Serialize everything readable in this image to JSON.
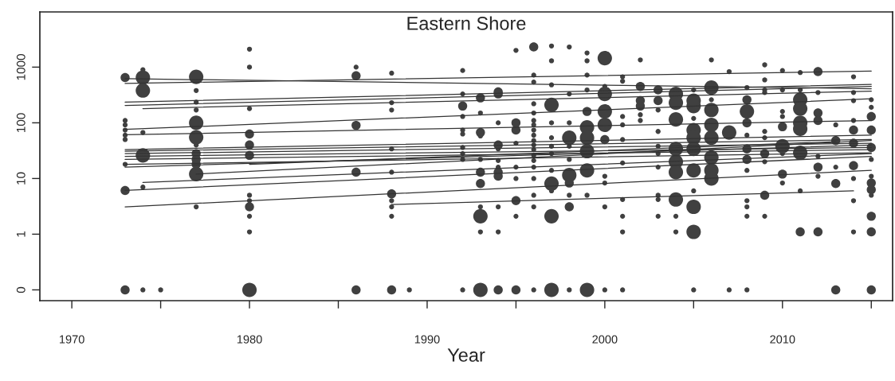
{
  "chart_data": {
    "type": "bubble",
    "title": "Eastern Shore",
    "xlabel": "Year",
    "log": "y",
    "marker": "circle",
    "grid": false,
    "xlim": [
      1968.2,
      2016.2
    ],
    "xticks": [
      1970,
      {
        "value": 1975,
        "label": null
      },
      1980,
      {
        "value": 1985,
        "label": null
      },
      1990,
      {
        "value": 1995,
        "label": null
      },
      2000,
      {
        "value": 2005,
        "label": null
      },
      2010,
      {
        "value": 2015,
        "label": null
      }
    ],
    "ylim": [
      0.064,
      9800
    ],
    "yticks": [
      {
        "value": 0.1,
        "label": "0"
      },
      1,
      10,
      100,
      1000
    ],
    "series": [
      {
        "color": "#404040",
        "x": [
          1973,
          1973,
          1973,
          1973,
          1973,
          1973,
          1973,
          1973,
          1973
        ],
        "values": [
          650,
          110,
          92,
          74,
          60,
          50,
          18,
          6.1,
          0.1
        ],
        "sizes": [
          0.4,
          0.12,
          0.12,
          0.12,
          0.12,
          0.12,
          0.12,
          0.4,
          0.4
        ]
      },
      {
        "color": "#404040",
        "x": [
          1974,
          1974,
          1974,
          1974,
          1974,
          1974,
          1974
        ],
        "values": [
          900,
          650,
          380,
          67,
          26,
          7,
          0.1
        ],
        "sizes": [
          0.12,
          1,
          1,
          0.12,
          1,
          0.12,
          0.12
        ]
      },
      {
        "color": "#404040",
        "x": [
          1975
        ],
        "values": [
          0.1
        ],
        "sizes": [
          0.12
        ]
      },
      {
        "color": "#404040",
        "x": [
          1977,
          1977,
          1977,
          1977,
          1977,
          1977,
          1977,
          1977,
          1977,
          1977,
          1977,
          1977
        ],
        "values": [
          670,
          380,
          235,
          170,
          100,
          55,
          40,
          28,
          22,
          18,
          12,
          3.1
        ],
        "sizes": [
          1,
          0.12,
          0.12,
          0.12,
          1,
          1,
          0.12,
          0.4,
          0.4,
          0.4,
          1,
          0.12
        ]
      },
      {
        "color": "#404040",
        "x": [
          1980,
          1980,
          1980,
          1980,
          1980,
          1980,
          1980,
          1980,
          1980,
          1980,
          1980,
          1980
        ],
        "values": [
          2100,
          1000,
          180,
          63,
          40,
          26,
          5,
          4,
          3.1,
          2.1,
          1.1,
          0.1
        ],
        "sizes": [
          0.12,
          0.12,
          0.12,
          0.4,
          0.4,
          0.4,
          0.12,
          0.12,
          0.4,
          0.12,
          0.12,
          1
        ]
      },
      {
        "color": "#404040",
        "x": [
          1986,
          1986,
          1986,
          1986,
          1986
        ],
        "values": [
          1000,
          700,
          90,
          13,
          0.1
        ],
        "sizes": [
          0.12,
          0.4,
          0.4,
          0.4,
          0.4
        ]
      },
      {
        "color": "#404040",
        "x": [
          1988,
          1988,
          1988,
          1988,
          1988,
          1988,
          1988,
          1988,
          1988,
          1988
        ],
        "values": [
          780,
          230,
          170,
          34,
          13,
          5.3,
          4,
          3.1,
          2.1,
          0.1
        ],
        "sizes": [
          0.12,
          0.12,
          0.12,
          0.12,
          0.12,
          0.4,
          0.12,
          0.12,
          0.12,
          0.4
        ]
      },
      {
        "color": "#404040",
        "x": [
          1989
        ],
        "values": [
          0.1
        ],
        "sizes": [
          0.12
        ]
      },
      {
        "color": "#404040",
        "x": [
          1992,
          1992,
          1992,
          1992,
          1992,
          1992,
          1992,
          1992,
          1992,
          1992
        ],
        "values": [
          870,
          330,
          200,
          130,
          74,
          63,
          36,
          28,
          22,
          0.1
        ],
        "sizes": [
          0.12,
          0.12,
          0.4,
          0.12,
          0.12,
          0.12,
          0.12,
          0.12,
          0.12,
          0.12
        ]
      },
      {
        "color": "#404040",
        "x": [
          1993,
          1993,
          1993,
          1993,
          1993,
          1993,
          1993,
          1993,
          1993,
          1993,
          1993
        ],
        "values": [
          280,
          150,
          67,
          58,
          22,
          13,
          8.1,
          3.1,
          2.1,
          1.1,
          0.1
        ],
        "sizes": [
          0.4,
          0.12,
          0.4,
          0.12,
          0.12,
          0.4,
          0.4,
          0.12,
          1,
          0.12,
          1
        ]
      },
      {
        "color": "#404040",
        "x": [
          1994,
          1994,
          1994,
          1994,
          1994,
          1994,
          1994,
          1994,
          1994,
          1994,
          1994,
          1994
        ],
        "values": [
          360,
          330,
          100,
          40,
          34,
          21,
          16,
          13,
          11,
          3.1,
          1.1,
          0.1
        ],
        "sizes": [
          0.4,
          0.4,
          0.12,
          0.4,
          0.12,
          0.12,
          0.12,
          0.4,
          0.4,
          0.12,
          0.12,
          0.4
        ]
      },
      {
        "color": "#404040",
        "x": [
          1995,
          1995,
          1995,
          1995,
          1995,
          1995,
          1995,
          1995,
          1995
        ],
        "values": [
          2000,
          100,
          74,
          43,
          16,
          10,
          4,
          2.1,
          0.1
        ],
        "sizes": [
          0.12,
          0.4,
          0.4,
          0.12,
          0.12,
          0.12,
          0.4,
          0.12,
          0.4
        ]
      },
      {
        "color": "#404040",
        "x": [
          1996,
          1996,
          1996,
          1996,
          1996,
          1996,
          1996,
          1996,
          1996,
          1996,
          1996,
          1996,
          1996,
          1996,
          1996,
          1996,
          1996,
          1996,
          1996
        ],
        "values": [
          2300,
          720,
          540,
          220,
          150,
          110,
          92,
          74,
          60,
          48,
          40,
          33,
          26,
          21,
          16,
          10,
          5,
          3.1,
          0.1
        ],
        "sizes": [
          0.4,
          0.12,
          0.12,
          0.12,
          0.12,
          0.12,
          0.12,
          0.12,
          0.12,
          0.12,
          0.12,
          0.12,
          0.12,
          0.12,
          0.12,
          0.12,
          0.12,
          0.12,
          0.12
        ]
      },
      {
        "color": "#404040",
        "x": [
          1997,
          1997,
          1997,
          1997,
          1997,
          1997,
          1997,
          1997,
          1997,
          1997,
          1997,
          1997,
          1997
        ],
        "values": [
          2400,
          1300,
          480,
          210,
          100,
          54,
          38,
          28,
          14,
          8.1,
          6,
          2.1,
          0.1
        ],
        "sizes": [
          0.12,
          0.12,
          0.12,
          1,
          0.12,
          0.12,
          0.12,
          0.12,
          0.12,
          1,
          0.12,
          1,
          1
        ]
      },
      {
        "color": "#404040",
        "x": [
          1998,
          1998,
          1998,
          1998,
          1998,
          1998,
          1998,
          1998,
          1998,
          1998,
          1998
        ],
        "values": [
          2300,
          330,
          100,
          54,
          38,
          22,
          11.5,
          8.3,
          5,
          3.1,
          0.1
        ],
        "sizes": [
          0.12,
          0.12,
          0.12,
          1,
          0.12,
          0.12,
          1,
          0.4,
          0.12,
          0.4,
          0.12
        ]
      },
      {
        "color": "#404040",
        "x": [
          1999,
          1999,
          1999,
          1999,
          1999,
          1999,
          1999,
          1999,
          1999,
          1999,
          1999
        ],
        "values": [
          1800,
          1300,
          720,
          390,
          160,
          83,
          54,
          31,
          14,
          5,
          0.1
        ],
        "sizes": [
          0.12,
          0.12,
          0.12,
          0.12,
          0.4,
          1,
          1,
          1,
          1,
          0.12,
          1
        ]
      },
      {
        "color": "#404040",
        "x": [
          2000,
          2000,
          2000,
          2000,
          2000,
          2000,
          2000,
          2000,
          2000,
          2000
        ],
        "values": [
          1450,
          450,
          330,
          160,
          92,
          50,
          11,
          8.3,
          3.1,
          0.1
        ],
        "sizes": [
          1,
          0.12,
          1,
          1,
          1,
          0.4,
          0.12,
          0.12,
          0.12,
          0.12
        ]
      },
      {
        "color": "#404040",
        "x": [
          2001,
          2001,
          2001,
          2001,
          2001,
          2001,
          2001,
          2001,
          2001,
          2001
        ],
        "values": [
          670,
          560,
          130,
          92,
          50,
          19,
          4.2,
          2.1,
          1.1,
          0.1
        ],
        "sizes": [
          0.12,
          0.12,
          0.12,
          0.12,
          0.12,
          0.12,
          0.12,
          0.12,
          0.12,
          0.12
        ]
      },
      {
        "color": "#404040",
        "x": [
          2002,
          2002,
          2002,
          2002,
          2002,
          2002
        ],
        "values": [
          1350,
          450,
          250,
          200,
          140,
          110
        ],
        "sizes": [
          0.12,
          0.4,
          0.4,
          0.4,
          0.12,
          0.12
        ]
      },
      {
        "color": "#404040",
        "x": [
          2003,
          2003,
          2003,
          2003,
          2003,
          2003,
          2003,
          2003,
          2003,
          2003
        ],
        "values": [
          390,
          250,
          170,
          70,
          38,
          28,
          16,
          5,
          4.2,
          2.1
        ],
        "sizes": [
          0.4,
          0.4,
          0.12,
          0.12,
          0.12,
          0.12,
          0.12,
          0.12,
          0.12,
          0.12
        ]
      },
      {
        "color": "#404040",
        "x": [
          2004,
          2004,
          2004,
          2004,
          2004,
          2004,
          2004,
          2004,
          2004
        ],
        "values": [
          330,
          230,
          115,
          34,
          20,
          13,
          4.2,
          2.1,
          1.1
        ],
        "sizes": [
          1,
          1,
          1,
          1,
          1,
          1,
          1,
          0.12,
          0.12
        ]
      },
      {
        "color": "#404040",
        "x": [
          2005,
          2005,
          2005,
          2005,
          2005,
          2005,
          2005,
          2005,
          2005,
          2005,
          2005,
          2005
        ],
        "values": [
          390,
          250,
          200,
          120,
          74,
          54,
          34,
          14,
          6,
          3.1,
          1.1,
          0.1
        ],
        "sizes": [
          0.12,
          1,
          1,
          0.12,
          1,
          1,
          1,
          1,
          0.12,
          1,
          1,
          0.12
        ]
      },
      {
        "color": "#404040",
        "x": [
          2006,
          2006,
          2006,
          2006,
          2006,
          2006,
          2006,
          2006,
          2006
        ],
        "values": [
          1350,
          430,
          260,
          170,
          92,
          54,
          24,
          14,
          10
        ],
        "sizes": [
          0.12,
          1,
          0.12,
          1,
          1,
          1,
          1,
          1,
          1
        ]
      },
      {
        "color": "#404040",
        "x": [
          2007,
          2007,
          2007
        ],
        "values": [
          830,
          67,
          0.1
        ],
        "sizes": [
          0.12,
          1,
          0.12
        ]
      },
      {
        "color": "#404040",
        "x": [
          2008,
          2008,
          2008,
          2008,
          2008,
          2008,
          2008,
          2008,
          2008,
          2008,
          2008,
          2008
        ],
        "values": [
          430,
          260,
          160,
          100,
          60,
          34,
          22,
          14,
          4,
          3.1,
          2.1,
          0.1
        ],
        "sizes": [
          0.12,
          0.4,
          1,
          0.4,
          0.12,
          0.4,
          0.4,
          0.12,
          0.12,
          0.12,
          0.12,
          0.12
        ]
      },
      {
        "color": "#404040",
        "x": [
          2009,
          2009,
          2009,
          2009,
          2009,
          2009,
          2009,
          2009,
          2009,
          2009
        ],
        "values": [
          1100,
          590,
          390,
          350,
          70,
          54,
          28,
          20,
          5,
          2.1
        ],
        "sizes": [
          0.12,
          0.12,
          0.12,
          0.12,
          0.12,
          0.12,
          0.4,
          0.12,
          0.4,
          0.12
        ]
      },
      {
        "color": "#404040",
        "x": [
          2010,
          2010,
          2010,
          2010,
          2010,
          2010,
          2010,
          2010,
          2010
        ],
        "values": [
          870,
          390,
          160,
          130,
          85,
          38,
          28,
          12,
          8.3
        ],
        "sizes": [
          0.12,
          0.12,
          0.12,
          0.12,
          0.4,
          1,
          0.12,
          0.4,
          0.12
        ]
      },
      {
        "color": "#404040",
        "x": [
          2011,
          2011,
          2011,
          2011,
          2011,
          2011,
          2011,
          2011,
          2011
        ],
        "values": [
          800,
          390,
          260,
          180,
          100,
          78,
          29,
          6,
          1.1
        ],
        "sizes": [
          0.12,
          0.12,
          1,
          1,
          1,
          1,
          1,
          0.12,
          0.4
        ]
      },
      {
        "color": "#404040",
        "x": [
          2012,
          2012,
          2012,
          2012,
          2012,
          2012,
          2012,
          2012
        ],
        "values": [
          830,
          350,
          150,
          110,
          25,
          16,
          11,
          1.1
        ],
        "sizes": [
          0.4,
          0.12,
          0.4,
          0.4,
          0.12,
          0.4,
          0.12,
          0.4
        ]
      },
      {
        "color": "#404040",
        "x": [
          2013,
          2013,
          2013,
          2013,
          2013
        ],
        "values": [
          92,
          48,
          16,
          8.1,
          0.1
        ],
        "sizes": [
          0.12,
          0.4,
          0.12,
          0.4,
          0.4
        ]
      },
      {
        "color": "#404040",
        "x": [
          2014,
          2014,
          2014,
          2014,
          2014,
          2014,
          2014,
          2014,
          2014,
          2014
        ],
        "values": [
          670,
          350,
          250,
          110,
          74,
          43,
          17,
          10,
          4,
          1.1
        ],
        "sizes": [
          0.12,
          0.12,
          0.12,
          0.12,
          0.4,
          0.4,
          0.4,
          0.12,
          0.12,
          0.12
        ]
      },
      {
        "color": "#404040",
        "x": [
          2015,
          2015,
          2015,
          2015,
          2015,
          2015,
          2015,
          2015,
          2015,
          2015,
          2015,
          2015,
          2015
        ],
        "values": [
          260,
          190,
          130,
          74,
          36,
          22,
          11,
          8.3,
          6.3,
          5,
          2.1,
          1.1,
          0.1
        ],
        "sizes": [
          0.12,
          0.12,
          0.4,
          0.4,
          0.4,
          0.12,
          0.12,
          0.4,
          0.4,
          0.12,
          0.4,
          0.4,
          0.4
        ]
      },
      {
        "type": "line",
        "marker": "none",
        "color": "#333333",
        "x": [
          1973,
          2015
        ],
        "values": [
          620,
          410
        ]
      },
      {
        "type": "line",
        "marker": "none",
        "color": "#333333",
        "x": [
          1973,
          2015
        ],
        "values": [
          510,
          850
        ]
      },
      {
        "type": "line",
        "marker": "none",
        "color": "#333333",
        "x": [
          1973,
          2015
        ],
        "values": [
          235,
          490
        ]
      },
      {
        "type": "line",
        "marker": "none",
        "color": "#333333",
        "x": [
          1973,
          2015
        ],
        "values": [
          205,
          450
        ]
      },
      {
        "type": "line",
        "marker": "none",
        "color": "#333333",
        "x": [
          1974,
          2015
        ],
        "values": [
          180,
          370
        ]
      },
      {
        "type": "line",
        "marker": "none",
        "color": "#333333",
        "x": [
          1973,
          2015
        ],
        "values": [
          76,
          270
        ]
      },
      {
        "type": "line",
        "marker": "none",
        "color": "#333333",
        "x": [
          1973,
          2015
        ],
        "values": [
          61,
          110
        ]
      },
      {
        "type": "line",
        "marker": "none",
        "color": "#333333",
        "x": [
          1973,
          2015
        ],
        "values": [
          33,
          60
        ]
      },
      {
        "type": "line",
        "marker": "none",
        "color": "#333333",
        "x": [
          1973,
          2015
        ],
        "values": [
          31,
          50
        ]
      },
      {
        "type": "line",
        "marker": "none",
        "color": "#333333",
        "x": [
          1973,
          2015
        ],
        "values": [
          28,
          43
        ]
      },
      {
        "type": "line",
        "marker": "none",
        "color": "#333333",
        "x": [
          1973,
          2015
        ],
        "values": [
          25,
          36
        ]
      },
      {
        "type": "line",
        "marker": "none",
        "color": "#333333",
        "x": [
          1973,
          2015
        ],
        "values": [
          22,
          33
        ]
      },
      {
        "type": "line",
        "marker": "none",
        "color": "#333333",
        "x": [
          1973,
          2015
        ],
        "values": [
          18,
          29
        ]
      },
      {
        "type": "line",
        "marker": "none",
        "color": "#333333",
        "x": [
          1973,
          2015
        ],
        "values": [
          16,
          40
        ]
      },
      {
        "type": "line",
        "marker": "none",
        "color": "#333333",
        "x": [
          1977,
          2015
        ],
        "values": [
          12,
          48
        ]
      },
      {
        "type": "line",
        "marker": "none",
        "color": "#333333",
        "x": [
          1980,
          2013
        ],
        "values": [
          18,
          46
        ]
      },
      {
        "type": "line",
        "marker": "none",
        "color": "#333333",
        "x": [
          1974,
          2015
        ],
        "values": [
          8.5,
          28
        ]
      },
      {
        "type": "line",
        "marker": "none",
        "color": "#333333",
        "x": [
          1973,
          2015
        ],
        "values": [
          6.1,
          25
        ]
      },
      {
        "type": "line",
        "marker": "none",
        "color": "#333333",
        "x": [
          1973,
          2015
        ],
        "values": [
          3.1,
          14
        ]
      },
      {
        "type": "line",
        "marker": "none",
        "color": "#333333",
        "x": [
          1988,
          2014
        ],
        "values": [
          3.4,
          6
        ]
      }
    ]
  }
}
